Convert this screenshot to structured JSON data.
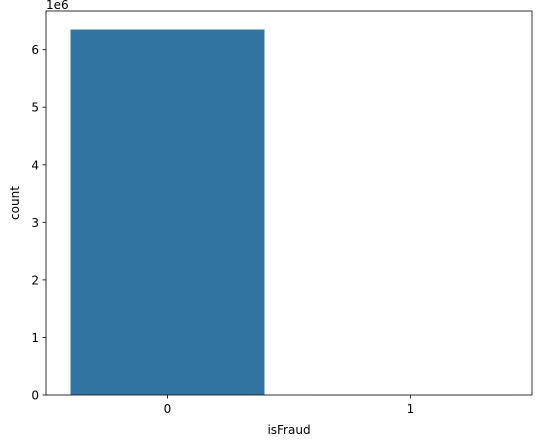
{
  "chart_data": {
    "type": "bar",
    "categories": [
      "0",
      "1"
    ],
    "values": [
      6354407,
      8213
    ],
    "xlabel": "isFraud",
    "ylabel": "count",
    "y_offset_label": "1e6",
    "yticks": [
      0,
      1,
      2,
      3,
      4,
      5,
      6
    ],
    "y_multiplier": 1000000,
    "ylim": [
      0,
      6672127
    ],
    "grid": false,
    "legend": "none",
    "bar_color": "#3274a1",
    "edge_color": "#ffffff"
  }
}
